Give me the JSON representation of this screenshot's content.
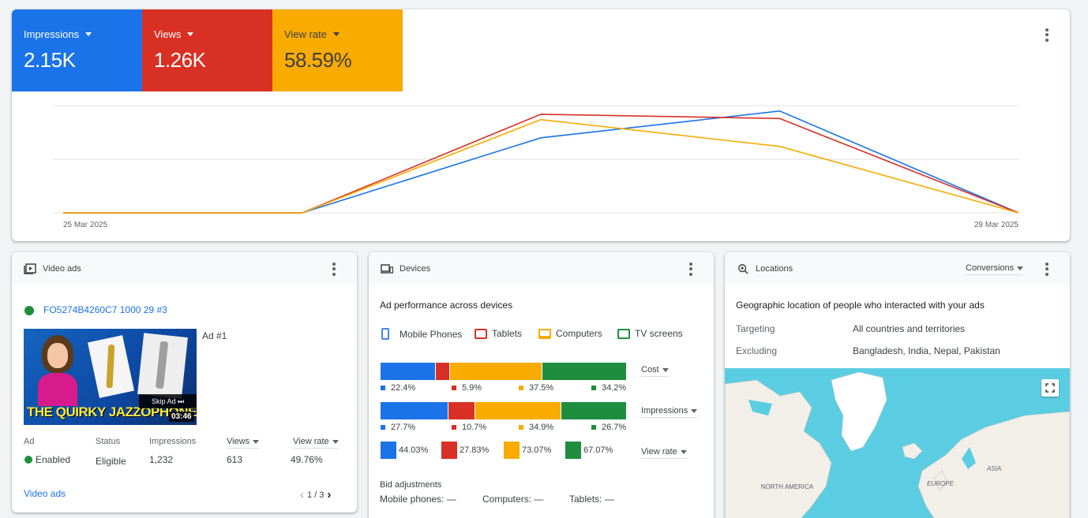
{
  "colors": {
    "blue": "#1a73e8",
    "red": "#d93025",
    "yellow": "#f9ab00",
    "green": "#1e8e3e",
    "map_water": "#5bcde3",
    "map_land": "#f1efe8"
  },
  "metrics": [
    {
      "label": "Impressions",
      "value": "2.15K"
    },
    {
      "label": "Views",
      "value": "1.26K"
    },
    {
      "label": "View rate",
      "value": "58.59%"
    }
  ],
  "chart_data": {
    "type": "line",
    "x": [
      "25 Mar 2025",
      "26 Mar 2025",
      "27 Mar 2025",
      "28 Mar 2025",
      "29 Mar 2025"
    ],
    "x_tick_labels": [
      "25 Mar 2025",
      "29 Mar 2025"
    ],
    "series": [
      {
        "color": "#1a73e8",
        "values": [
          0,
          0,
          0.7,
          0.95,
          0
        ]
      },
      {
        "color": "#d93025",
        "values": [
          0,
          0,
          0.92,
          0.88,
          0
        ]
      },
      {
        "color": "#f9ab00",
        "values": [
          0,
          0,
          0.87,
          0.62,
          0
        ]
      }
    ],
    "ylim": [
      0,
      1
    ],
    "grid": true
  },
  "video": {
    "title": "Video ads",
    "ad_name": "FO5274B4260C7 1000 29 #3",
    "ad_index": "Ad #1",
    "thumb_text": "THE QUIRKY JAZZOPHONE",
    "skip_label": "Skip Ad ⏭",
    "duration": "03:46",
    "cols": {
      "ad": "Ad",
      "status": "Status",
      "impressions": "Impressions",
      "views": "Views",
      "view_rate": "View rate"
    },
    "row": {
      "ad": "Enabled",
      "status": "Eligible",
      "impressions": "1,232",
      "views": "613",
      "view_rate": "49.76%"
    },
    "footer_link": "Video ads",
    "page": "1 / 3"
  },
  "devices": {
    "title": "Devices",
    "subtitle": "Ad performance across devices",
    "legend": [
      "Mobile Phones",
      "Tablets",
      "Computers",
      "TV screens"
    ],
    "cost": {
      "label": "Cost",
      "values": [
        22.4,
        5.9,
        37.5,
        34.2
      ],
      "labels": [
        "22.4%",
        "5.9%",
        "37.5%",
        "34.2%"
      ]
    },
    "impressions": {
      "label": "Impressions",
      "values": [
        27.7,
        10.7,
        34.9,
        26.7
      ],
      "labels": [
        "27.7%",
        "10.7%",
        "34.9%",
        "26.7%"
      ]
    },
    "view_rate": {
      "label": "View rate",
      "labels": [
        "44.03%",
        "27.83%",
        "73.07%",
        "67.07%"
      ]
    },
    "bid_title": "Bid adjustments",
    "bid": [
      "Mobile phones: —",
      "Computers: —",
      "Tablets: —"
    ]
  },
  "locations": {
    "title": "Locations",
    "metric_dd": "Conversions",
    "subtitle": "Geographic location of people who interacted with your ads",
    "targeting_label": "Targeting",
    "targeting_value": "All countries and territories",
    "excluding_label": "Excluding",
    "excluding_value": "Bangladesh, India, Nepal, Pakistan",
    "map_labels": {
      "north_america": "NORTH AMERICA",
      "europe": "EUROPE",
      "asia": "ASIA"
    }
  }
}
